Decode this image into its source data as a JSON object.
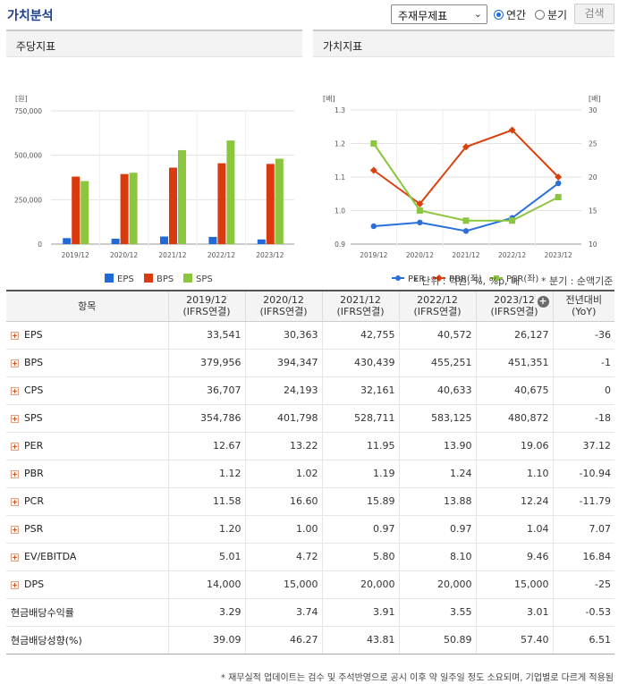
{
  "header": {
    "title": "가치분석",
    "select_value": "주재무제표",
    "radio_annual": "연간",
    "radio_quarter": "분기",
    "search_button": "검색"
  },
  "left_panel": {
    "title": "주당지표"
  },
  "right_panel": {
    "title": "가치지표"
  },
  "chart_data": [
    {
      "type": "bar",
      "title": "주당지표",
      "ylabel": "[원]",
      "categories": [
        "2019/12",
        "2020/12",
        "2021/12",
        "2022/12",
        "2023/12"
      ],
      "yticks": [
        "750,000",
        "500,000",
        "250,000",
        "0"
      ],
      "ylim": [
        0,
        750000
      ],
      "series": [
        {
          "name": "EPS",
          "color": "#1f6ad8",
          "values": [
            33541,
            30363,
            42755,
            40572,
            26127
          ]
        },
        {
          "name": "BPS",
          "color": "#d93a0e",
          "values": [
            379956,
            394347,
            430439,
            455251,
            451351
          ]
        },
        {
          "name": "SPS",
          "color": "#8cc63f",
          "values": [
            354786,
            401798,
            528711,
            583125,
            480872
          ]
        }
      ],
      "legend": "bottom"
    },
    {
      "type": "line",
      "title": "가치지표",
      "ylabel_left": "[배]",
      "ylabel_right": "[배]",
      "categories": [
        "2019/12",
        "2020/12",
        "2021/12",
        "2022/12",
        "2023/12"
      ],
      "left_ticks": [
        "1.3",
        "1.2",
        "1.1",
        "1.0",
        "0.9"
      ],
      "right_ticks": [
        "30",
        "25",
        "20",
        "15",
        "10"
      ],
      "left_ylim": [
        0.9,
        1.3
      ],
      "right_ylim": [
        10,
        30
      ],
      "series": [
        {
          "name": "PER",
          "axis": "right",
          "color": "#2a6fdb",
          "marker": "circle",
          "values": [
            12.67,
            13.22,
            11.95,
            13.9,
            19.06
          ]
        },
        {
          "name": "PBR(좌)",
          "axis": "left",
          "color": "#d9420f",
          "marker": "diamond",
          "values": [
            1.12,
            1.02,
            1.19,
            1.24,
            1.1
          ]
        },
        {
          "name": "PSR(좌)",
          "axis": "left",
          "color": "#8cc63f",
          "marker": "square",
          "values": [
            1.2,
            1.0,
            0.97,
            0.97,
            1.04
          ]
        }
      ],
      "legend": "bottom"
    }
  ],
  "notes": {
    "unit": "* 단위 : 억원, %, %p, 배",
    "quarter": "* 분기 : 순액기준",
    "footer": "* 재무실적 업데이트는 검수 및 주석반영으로 공시 이후 약 일주일 정도 소요되며, 기업별로 다르게 적용됨"
  },
  "table": {
    "headers": [
      {
        "l1": "항목",
        "l2": ""
      },
      {
        "l1": "2019/12",
        "l2": "(IFRS연결)"
      },
      {
        "l1": "2020/12",
        "l2": "(IFRS연결)"
      },
      {
        "l1": "2021/12",
        "l2": "(IFRS연결)"
      },
      {
        "l1": "2022/12",
        "l2": "(IFRS연결)"
      },
      {
        "l1": "2023/12",
        "l2": "(IFRS연결)"
      },
      {
        "l1": "전년대비",
        "l2": "(YoY)"
      }
    ],
    "rows": [
      {
        "name": "EPS",
        "expand": true,
        "v": [
          "33,541",
          "30,363",
          "42,755",
          "40,572",
          "26,127"
        ],
        "yoy": "-36"
      },
      {
        "name": "BPS",
        "expand": true,
        "v": [
          "379,956",
          "394,347",
          "430,439",
          "455,251",
          "451,351"
        ],
        "yoy": "-1"
      },
      {
        "name": "CPS",
        "expand": true,
        "v": [
          "36,707",
          "24,193",
          "32,161",
          "40,633",
          "40,675"
        ],
        "yoy": "0"
      },
      {
        "name": "SPS",
        "expand": true,
        "v": [
          "354,786",
          "401,798",
          "528,711",
          "583,125",
          "480,872"
        ],
        "yoy": "-18"
      },
      {
        "name": "PER",
        "expand": true,
        "v": [
          "12.67",
          "13.22",
          "11.95",
          "13.90",
          "19.06"
        ],
        "yoy": "37.12"
      },
      {
        "name": "PBR",
        "expand": true,
        "v": [
          "1.12",
          "1.02",
          "1.19",
          "1.24",
          "1.10"
        ],
        "yoy": "-10.94"
      },
      {
        "name": "PCR",
        "expand": true,
        "v": [
          "11.58",
          "16.60",
          "15.89",
          "13.88",
          "12.24"
        ],
        "yoy": "-11.79"
      },
      {
        "name": "PSR",
        "expand": true,
        "v": [
          "1.20",
          "1.00",
          "0.97",
          "0.97",
          "1.04"
        ],
        "yoy": "7.07"
      },
      {
        "name": "EV/EBITDA",
        "expand": true,
        "v": [
          "5.01",
          "4.72",
          "5.80",
          "8.10",
          "9.46"
        ],
        "yoy": "16.84"
      },
      {
        "name": "DPS",
        "expand": true,
        "v": [
          "14,000",
          "15,000",
          "20,000",
          "20,000",
          "15,000"
        ],
        "yoy": "-25"
      },
      {
        "name": "현금배당수익률",
        "expand": false,
        "v": [
          "3.29",
          "3.74",
          "3.91",
          "3.55",
          "3.01"
        ],
        "yoy": "-0.53"
      },
      {
        "name": "현금배당성향(%)",
        "expand": false,
        "v": [
          "39.09",
          "46.27",
          "43.81",
          "50.89",
          "57.40"
        ],
        "yoy": "6.51"
      }
    ]
  }
}
